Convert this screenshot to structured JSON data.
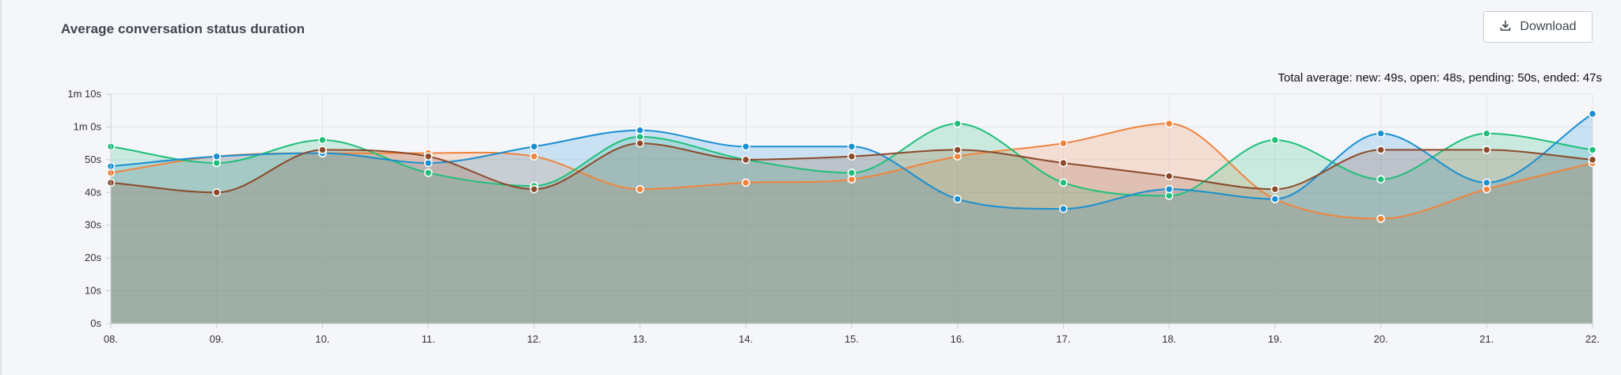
{
  "title": "Average conversation status duration",
  "download": {
    "label": "Download",
    "icon": "download-icon"
  },
  "total_average": "Total average: new: 49s, open: 48s, pending: 50s, ended: 47s",
  "chart_data": {
    "type": "area",
    "title": "Average conversation status duration",
    "xlabel": "",
    "ylabel": "",
    "ylim": [
      0,
      70
    ],
    "grid": true,
    "legend": "none",
    "x": [
      "08.",
      "09.",
      "10.",
      "11.",
      "12.",
      "13.",
      "14.",
      "15.",
      "16.",
      "17.",
      "18.",
      "19.",
      "20.",
      "21.",
      "22."
    ],
    "y_ticks": [
      {
        "value": 0,
        "label": "0s"
      },
      {
        "value": 10,
        "label": "10s"
      },
      {
        "value": 20,
        "label": "20s"
      },
      {
        "value": 30,
        "label": "30s"
      },
      {
        "value": 40,
        "label": "40s"
      },
      {
        "value": 50,
        "label": "50s"
      },
      {
        "value": 60,
        "label": "1m 0s"
      },
      {
        "value": 70,
        "label": "1m 10s"
      }
    ],
    "series": [
      {
        "color": "#f0843d",
        "values": [
          46,
          51,
          52,
          52,
          51,
          41,
          43,
          44,
          51,
          55,
          61,
          38,
          32,
          41,
          49
        ]
      },
      {
        "color": "#1fbf7a",
        "values": [
          54,
          49,
          56,
          46,
          42,
          57,
          50,
          46,
          61,
          43,
          39,
          56,
          44,
          58,
          53
        ]
      },
      {
        "color": "#1a8fd1",
        "values": [
          48,
          51,
          52,
          49,
          54,
          59,
          54,
          54,
          38,
          35,
          41,
          38,
          58,
          43,
          64
        ]
      },
      {
        "color": "#8a4a2b",
        "values": [
          43,
          40,
          53,
          51,
          41,
          55,
          50,
          51,
          53,
          49,
          45,
          41,
          53,
          53,
          50
        ]
      }
    ]
  }
}
